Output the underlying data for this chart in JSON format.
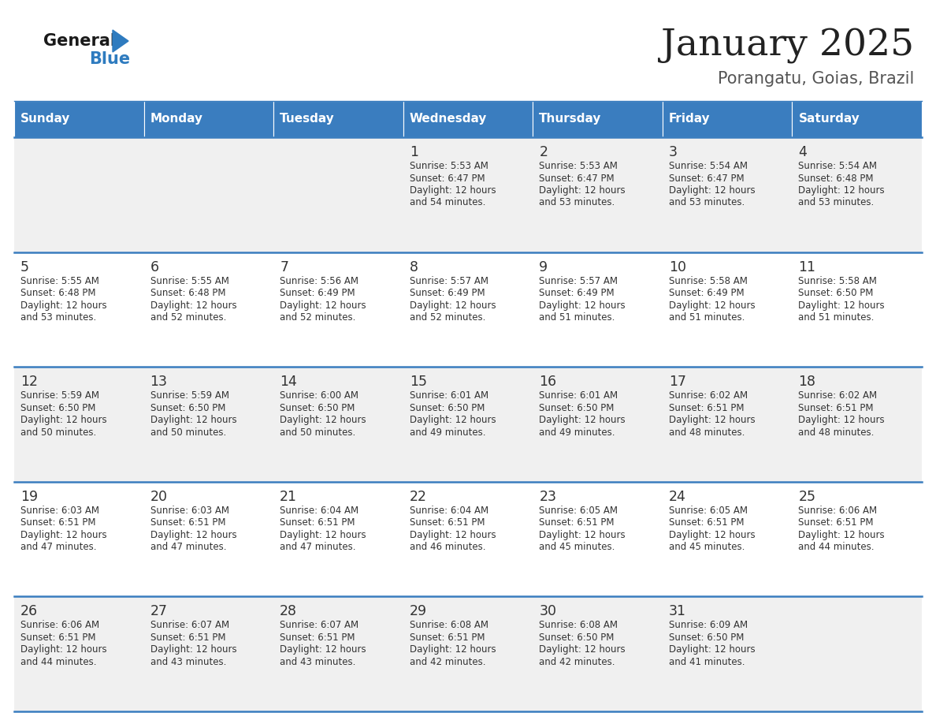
{
  "title": "January 2025",
  "subtitle": "Porangatu, Goias, Brazil",
  "days_of_week": [
    "Sunday",
    "Monday",
    "Tuesday",
    "Wednesday",
    "Thursday",
    "Friday",
    "Saturday"
  ],
  "header_bg": "#3a7dbf",
  "header_text": "#ffffff",
  "cell_bg_odd": "#f0f0f0",
  "cell_bg_even": "#ffffff",
  "row_line_color": "#3a7dbf",
  "text_color": "#333333",
  "title_color": "#222222",
  "subtitle_color": "#555555",
  "logo_general_color": "#1a1a1a",
  "logo_blue_color": "#2e7bbf",
  "calendar": [
    [
      null,
      null,
      null,
      {
        "day": 1,
        "sunrise": "5:53 AM",
        "sunset": "6:47 PM",
        "daylight": "12 hours and 54 minutes"
      },
      {
        "day": 2,
        "sunrise": "5:53 AM",
        "sunset": "6:47 PM",
        "daylight": "12 hours and 53 minutes"
      },
      {
        "day": 3,
        "sunrise": "5:54 AM",
        "sunset": "6:47 PM",
        "daylight": "12 hours and 53 minutes"
      },
      {
        "day": 4,
        "sunrise": "5:54 AM",
        "sunset": "6:48 PM",
        "daylight": "12 hours and 53 minutes"
      }
    ],
    [
      {
        "day": 5,
        "sunrise": "5:55 AM",
        "sunset": "6:48 PM",
        "daylight": "12 hours and 53 minutes"
      },
      {
        "day": 6,
        "sunrise": "5:55 AM",
        "sunset": "6:48 PM",
        "daylight": "12 hours and 52 minutes"
      },
      {
        "day": 7,
        "sunrise": "5:56 AM",
        "sunset": "6:49 PM",
        "daylight": "12 hours and 52 minutes"
      },
      {
        "day": 8,
        "sunrise": "5:57 AM",
        "sunset": "6:49 PM",
        "daylight": "12 hours and 52 minutes"
      },
      {
        "day": 9,
        "sunrise": "5:57 AM",
        "sunset": "6:49 PM",
        "daylight": "12 hours and 51 minutes"
      },
      {
        "day": 10,
        "sunrise": "5:58 AM",
        "sunset": "6:49 PM",
        "daylight": "12 hours and 51 minutes"
      },
      {
        "day": 11,
        "sunrise": "5:58 AM",
        "sunset": "6:50 PM",
        "daylight": "12 hours and 51 minutes"
      }
    ],
    [
      {
        "day": 12,
        "sunrise": "5:59 AM",
        "sunset": "6:50 PM",
        "daylight": "12 hours and 50 minutes"
      },
      {
        "day": 13,
        "sunrise": "5:59 AM",
        "sunset": "6:50 PM",
        "daylight": "12 hours and 50 minutes"
      },
      {
        "day": 14,
        "sunrise": "6:00 AM",
        "sunset": "6:50 PM",
        "daylight": "12 hours and 50 minutes"
      },
      {
        "day": 15,
        "sunrise": "6:01 AM",
        "sunset": "6:50 PM",
        "daylight": "12 hours and 49 minutes"
      },
      {
        "day": 16,
        "sunrise": "6:01 AM",
        "sunset": "6:50 PM",
        "daylight": "12 hours and 49 minutes"
      },
      {
        "day": 17,
        "sunrise": "6:02 AM",
        "sunset": "6:51 PM",
        "daylight": "12 hours and 48 minutes"
      },
      {
        "day": 18,
        "sunrise": "6:02 AM",
        "sunset": "6:51 PM",
        "daylight": "12 hours and 48 minutes"
      }
    ],
    [
      {
        "day": 19,
        "sunrise": "6:03 AM",
        "sunset": "6:51 PM",
        "daylight": "12 hours and 47 minutes"
      },
      {
        "day": 20,
        "sunrise": "6:03 AM",
        "sunset": "6:51 PM",
        "daylight": "12 hours and 47 minutes"
      },
      {
        "day": 21,
        "sunrise": "6:04 AM",
        "sunset": "6:51 PM",
        "daylight": "12 hours and 47 minutes"
      },
      {
        "day": 22,
        "sunrise": "6:04 AM",
        "sunset": "6:51 PM",
        "daylight": "12 hours and 46 minutes"
      },
      {
        "day": 23,
        "sunrise": "6:05 AM",
        "sunset": "6:51 PM",
        "daylight": "12 hours and 45 minutes"
      },
      {
        "day": 24,
        "sunrise": "6:05 AM",
        "sunset": "6:51 PM",
        "daylight": "12 hours and 45 minutes"
      },
      {
        "day": 25,
        "sunrise": "6:06 AM",
        "sunset": "6:51 PM",
        "daylight": "12 hours and 44 minutes"
      }
    ],
    [
      {
        "day": 26,
        "sunrise": "6:06 AM",
        "sunset": "6:51 PM",
        "daylight": "12 hours and 44 minutes"
      },
      {
        "day": 27,
        "sunrise": "6:07 AM",
        "sunset": "6:51 PM",
        "daylight": "12 hours and 43 minutes"
      },
      {
        "day": 28,
        "sunrise": "6:07 AM",
        "sunset": "6:51 PM",
        "daylight": "12 hours and 43 minutes"
      },
      {
        "day": 29,
        "sunrise": "6:08 AM",
        "sunset": "6:51 PM",
        "daylight": "12 hours and 42 minutes"
      },
      {
        "day": 30,
        "sunrise": "6:08 AM",
        "sunset": "6:50 PM",
        "daylight": "12 hours and 42 minutes"
      },
      {
        "day": 31,
        "sunrise": "6:09 AM",
        "sunset": "6:50 PM",
        "daylight": "12 hours and 41 minutes"
      },
      null
    ]
  ],
  "figsize": [
    11.88,
    9.18
  ],
  "dpi": 100
}
